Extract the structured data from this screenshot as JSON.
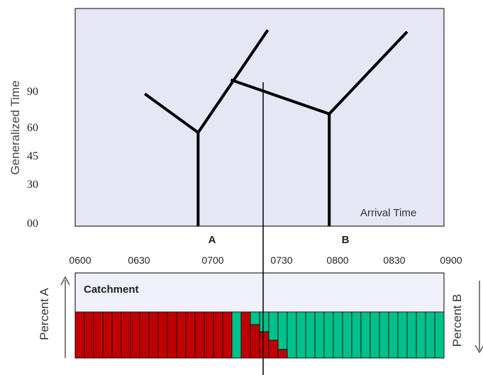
{
  "top_chart": {
    "ylabel": "Generalized Time",
    "yticks": [
      "90",
      "60",
      "45",
      "30",
      "00"
    ],
    "corner_label": "Arrival Time",
    "station_labels": [
      "A",
      "B"
    ],
    "background": "#e6e6f5"
  },
  "time_axis": {
    "ticks": [
      "0600",
      "0630",
      "0700",
      "0730",
      "0800",
      "0830",
      "0900"
    ]
  },
  "catchment": {
    "title": "Catchment",
    "left_label": "Percent A",
    "right_label": "Percent B",
    "colors": {
      "a": "#c00000",
      "b": "#00c08b",
      "background": "#f0f0fa"
    },
    "bar_count": 40,
    "split_fraction": 0.46
  },
  "chart_data": {
    "type": "line",
    "xlabel": "Arrival Time",
    "ylabel": "Generalized Time",
    "x_ticks": [
      "0600",
      "0630",
      "0700",
      "0730",
      "0800",
      "0830",
      "0900"
    ],
    "y_ticks": [
      "00",
      "30",
      "45",
      "60",
      "90"
    ],
    "series": [
      {
        "name": "A",
        "x": [
          "0634",
          "0700",
          "0734"
        ],
        "y": [
          88,
          57,
          127
        ],
        "drop_at": "0700"
      },
      {
        "name": "B",
        "x": [
          "0716",
          "0804",
          "0842"
        ],
        "y": [
          97,
          71,
          126
        ],
        "drop_at": "0804"
      }
    ],
    "marker_time": "0722"
  }
}
